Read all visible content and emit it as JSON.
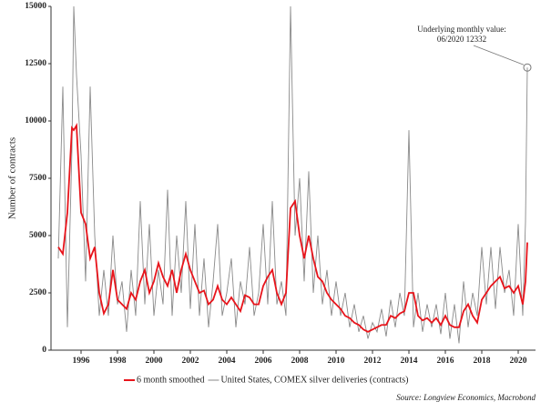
{
  "chart_data": {
    "type": "line",
    "y_label": "Number of contracts",
    "source": "Source: Longview Economics, Macrobond",
    "annotation": [
      "Underlying monthly value:",
      "06/2020 12332"
    ],
    "legend": "bottom",
    "xlim": [
      1994.35,
      2020.95
    ],
    "xticks": [
      1996,
      1998,
      2000,
      2002,
      2004,
      2006,
      2008,
      2010,
      2012,
      2014,
      2016,
      2018,
      2020
    ],
    "ylim": [
      0,
      15000
    ],
    "yticks": [
      0,
      2500,
      5000,
      7500,
      10000,
      12500,
      15000
    ],
    "x": [
      1994.75,
      1995.0,
      1995.25,
      1995.5,
      1995.6,
      1995.75,
      1996.0,
      1996.25,
      1996.5,
      1996.75,
      1997.0,
      1997.25,
      1997.5,
      1997.75,
      1998.0,
      1998.25,
      1998.5,
      1998.75,
      1999.0,
      1999.25,
      1999.5,
      1999.75,
      2000.0,
      2000.25,
      2000.5,
      2000.75,
      2001.0,
      2001.25,
      2001.5,
      2001.75,
      2002.0,
      2002.25,
      2002.5,
      2002.75,
      2003.0,
      2003.25,
      2003.5,
      2003.75,
      2004.0,
      2004.25,
      2004.5,
      2004.75,
      2005.0,
      2005.25,
      2005.5,
      2005.75,
      2006.0,
      2006.25,
      2006.5,
      2006.75,
      2007.0,
      2007.25,
      2007.5,
      2007.75,
      2008.0,
      2008.25,
      2008.5,
      2008.75,
      2009.0,
      2009.25,
      2009.5,
      2009.75,
      2010.0,
      2010.25,
      2010.5,
      2010.75,
      2011.0,
      2011.25,
      2011.5,
      2011.75,
      2012.0,
      2012.25,
      2012.5,
      2012.75,
      2013.0,
      2013.25,
      2013.5,
      2013.75,
      2014.0,
      2014.25,
      2014.5,
      2014.75,
      2015.0,
      2015.25,
      2015.5,
      2015.75,
      2016.0,
      2016.25,
      2016.5,
      2016.75,
      2017.0,
      2017.25,
      2017.5,
      2017.75,
      2018.0,
      2018.25,
      2018.5,
      2018.75,
      2019.0,
      2019.25,
      2019.5,
      2019.75,
      2020.0,
      2020.25,
      2020.4,
      2020.5
    ],
    "series": [
      {
        "name": "6 month smoothed",
        "color": "#e8141b",
        "values": [
          4500,
          4200,
          6000,
          9700,
          9600,
          9800,
          6000,
          5500,
          4000,
          4500,
          2500,
          1600,
          2000,
          3500,
          2200,
          2000,
          1800,
          2500,
          2200,
          3000,
          3500,
          2500,
          3000,
          3800,
          3200,
          2800,
          3500,
          2500,
          3500,
          4200,
          3500,
          3000,
          2500,
          2600,
          2000,
          2200,
          2800,
          2200,
          2000,
          2300,
          2000,
          1700,
          2400,
          2300,
          2000,
          2000,
          2800,
          3200,
          3500,
          2500,
          2000,
          2500,
          6200,
          6500,
          5000,
          4000,
          5000,
          4000,
          3200,
          3000,
          2500,
          2200,
          2000,
          1800,
          1500,
          1400,
          1200,
          1100,
          900,
          800,
          900,
          1000,
          1100,
          1100,
          1500,
          1400,
          1600,
          1700,
          2500,
          2500,
          1500,
          1300,
          1400,
          1200,
          1400,
          1100,
          1500,
          1100,
          1000,
          1000,
          1700,
          2000,
          1500,
          1200,
          2200,
          2500,
          2800,
          3000,
          3200,
          2700,
          2800,
          2500,
          2800,
          2000,
          3000,
          4700
        ]
      },
      {
        "name": "United States, COMEX silver deliveries (contracts)",
        "color": "#8a8a8a",
        "values": [
          4000,
          11500,
          1000,
          8800,
          15000,
          12000,
          8500,
          3000,
          11500,
          5000,
          1500,
          3500,
          1500,
          5000,
          2000,
          3000,
          800,
          3500,
          1500,
          6500,
          2000,
          5500,
          1500,
          3500,
          2000,
          7000,
          1500,
          5000,
          2500,
          6500,
          1800,
          5500,
          1500,
          4000,
          1000,
          3000,
          5500,
          1500,
          2500,
          4000,
          1000,
          3000,
          2000,
          4500,
          1500,
          2500,
          5500,
          2000,
          6500,
          2000,
          3000,
          1500,
          15000,
          5000,
          7500,
          3000,
          7800,
          2500,
          5000,
          2000,
          3500,
          1500,
          3000,
          1500,
          2500,
          1000,
          2000,
          800,
          1500,
          500,
          1200,
          800,
          1800,
          600,
          2200,
          1000,
          2500,
          1500,
          9600,
          1000,
          2500,
          800,
          2000,
          1000,
          2000,
          700,
          2500,
          500,
          2000,
          300,
          3000,
          1000,
          2500,
          1500,
          4500,
          2000,
          4500,
          1800,
          4500,
          2500,
          3500,
          1500,
          5500,
          1500,
          5600,
          12332
        ]
      }
    ]
  }
}
